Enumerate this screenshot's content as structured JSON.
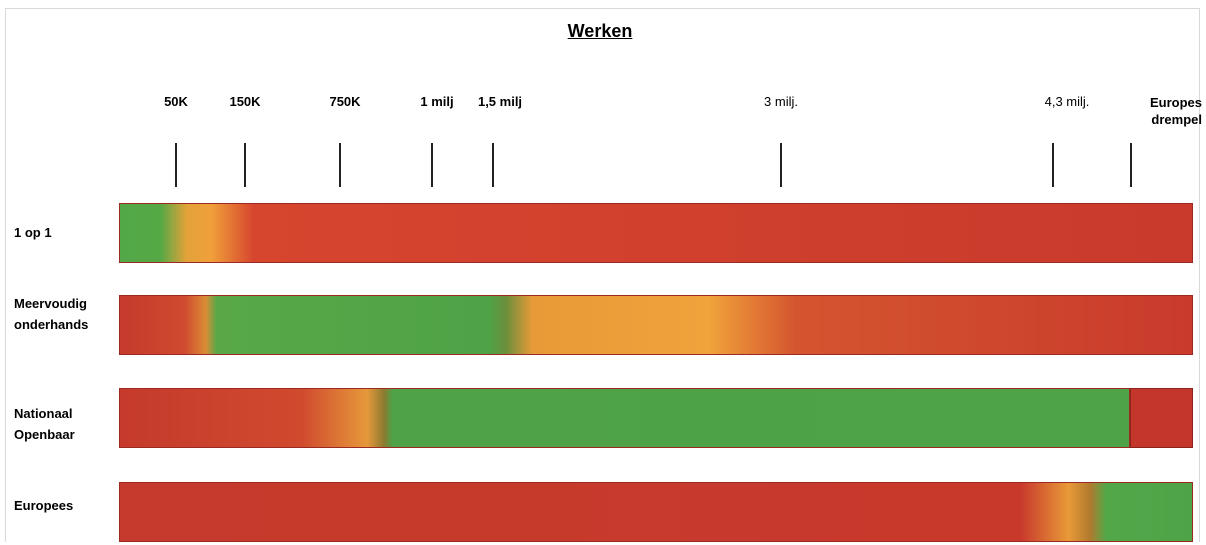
{
  "title": "Werken",
  "ticks": [
    {
      "label": "50K"
    },
    {
      "label": "150K"
    },
    {
      "label": "750K"
    },
    {
      "label": "1 milj"
    },
    {
      "label": "1,5 milj"
    },
    {
      "label": "3 milj."
    },
    {
      "label": "4,3 milj."
    },
    {
      "label": "Europes drempel"
    }
  ],
  "rows": [
    {
      "label": "1 op 1"
    },
    {
      "label": "Meervoudig onderhands"
    },
    {
      "label": "Nationaal Openbaar"
    },
    {
      "label": "Europees"
    }
  ],
  "colors": {
    "green": "#4fa246",
    "orange": "#f0a03a",
    "red": "#c93a2c"
  }
}
